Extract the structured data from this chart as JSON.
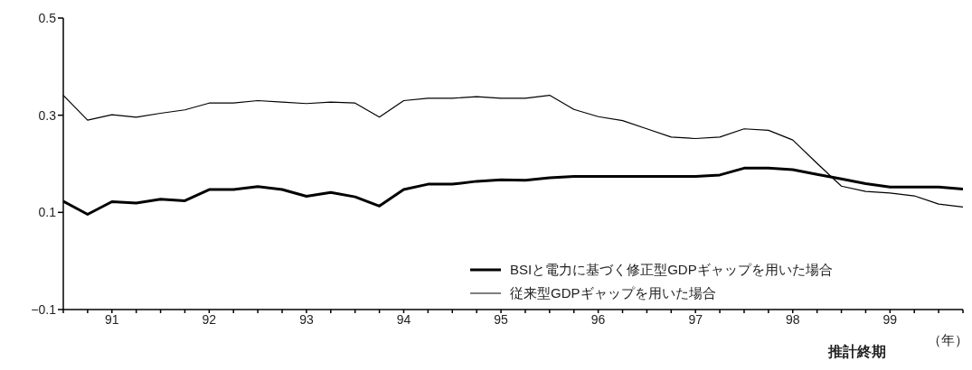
{
  "chart_data": {
    "type": "line",
    "xlabel": "推計終期",
    "annotations": [
      "（年）"
    ],
    "x": [
      1990.5,
      1990.75,
      1991,
      1991.25,
      1991.5,
      1991.75,
      1992,
      1992.25,
      1992.5,
      1992.75,
      1993,
      1993.25,
      1993.5,
      1993.75,
      1994,
      1994.25,
      1994.5,
      1994.75,
      1995,
      1995.25,
      1995.5,
      1995.75,
      1996,
      1996.25,
      1996.5,
      1996.75,
      1997,
      1997.25,
      1997.5,
      1997.75,
      1998,
      1998.25,
      1998.5,
      1998.75,
      1999,
      1999.25,
      1999.5,
      1999.75
    ],
    "series": [
      {
        "name": "BSIと電力に基づく修正型GDPギャップを用いた場合",
        "color": "#000000",
        "values": [
          0.123,
          0.096,
          0.122,
          0.119,
          0.127,
          0.124,
          0.147,
          0.147,
          0.153,
          0.147,
          0.133,
          0.141,
          0.132,
          0.113,
          0.147,
          0.158,
          0.158,
          0.164,
          0.167,
          0.166,
          0.171,
          0.174,
          0.174,
          0.174,
          0.174,
          0.174,
          0.174,
          0.177,
          0.191,
          0.191,
          0.188,
          0.178,
          0.169,
          0.159,
          0.152,
          0.152,
          0.152,
          0.148
        ]
      },
      {
        "name": "従来型GDPギャップを用いた場合",
        "color": "#000000",
        "values": [
          0.341,
          0.29,
          0.301,
          0.296,
          0.304,
          0.311,
          0.325,
          0.325,
          0.33,
          0.327,
          0.324,
          0.327,
          0.325,
          0.296,
          0.33,
          0.335,
          0.335,
          0.338,
          0.335,
          0.335,
          0.341,
          0.312,
          0.297,
          0.289,
          0.272,
          0.255,
          0.252,
          0.255,
          0.272,
          0.269,
          0.249,
          0.201,
          0.154,
          0.143,
          0.14,
          0.134,
          0.117,
          0.111
        ]
      }
    ],
    "xlim": [
      1990.5,
      1999.75
    ],
    "xticks": [
      {
        "value": 1990.5,
        "label": null
      },
      {
        "value": 1990.75,
        "label": null
      },
      {
        "value": 1991,
        "label": "91"
      },
      {
        "value": 1991.25,
        "label": null
      },
      {
        "value": 1991.5,
        "label": null
      },
      {
        "value": 1991.75,
        "label": null
      },
      {
        "value": 1992,
        "label": "92"
      },
      {
        "value": 1992.25,
        "label": null
      },
      {
        "value": 1992.5,
        "label": null
      },
      {
        "value": 1992.75,
        "label": null
      },
      {
        "value": 1993,
        "label": "93"
      },
      {
        "value": 1993.25,
        "label": null
      },
      {
        "value": 1993.5,
        "label": null
      },
      {
        "value": 1993.75,
        "label": null
      },
      {
        "value": 1994,
        "label": "94"
      },
      {
        "value": 1994.25,
        "label": null
      },
      {
        "value": 1994.5,
        "label": null
      },
      {
        "value": 1994.75,
        "label": null
      },
      {
        "value": 1995,
        "label": "95"
      },
      {
        "value": 1995.25,
        "label": null
      },
      {
        "value": 1995.5,
        "label": null
      },
      {
        "value": 1995.75,
        "label": null
      },
      {
        "value": 1996,
        "label": "96"
      },
      {
        "value": 1996.25,
        "label": null
      },
      {
        "value": 1996.5,
        "label": null
      },
      {
        "value": 1996.75,
        "label": null
      },
      {
        "value": 1997,
        "label": "97"
      },
      {
        "value": 1997.25,
        "label": null
      },
      {
        "value": 1997.5,
        "label": null
      },
      {
        "value": 1997.75,
        "label": null
      },
      {
        "value": 1998,
        "label": "98"
      },
      {
        "value": 1998.25,
        "label": null
      },
      {
        "value": 1998.5,
        "label": null
      },
      {
        "value": 1998.75,
        "label": null
      },
      {
        "value": 1999,
        "label": "99"
      },
      {
        "value": 1999.25,
        "label": null
      },
      {
        "value": 1999.5,
        "label": null
      },
      {
        "value": 1999.75,
        "label": null
      }
    ],
    "ylim": [
      -0.1,
      0.5
    ],
    "yticks": [
      {
        "value": -0.1,
        "label": "−0.1"
      },
      0.1,
      0.3,
      0.5
    ],
    "legend": "bottom right",
    "marker": "none",
    "line_style": "solid",
    "grid": false
  }
}
